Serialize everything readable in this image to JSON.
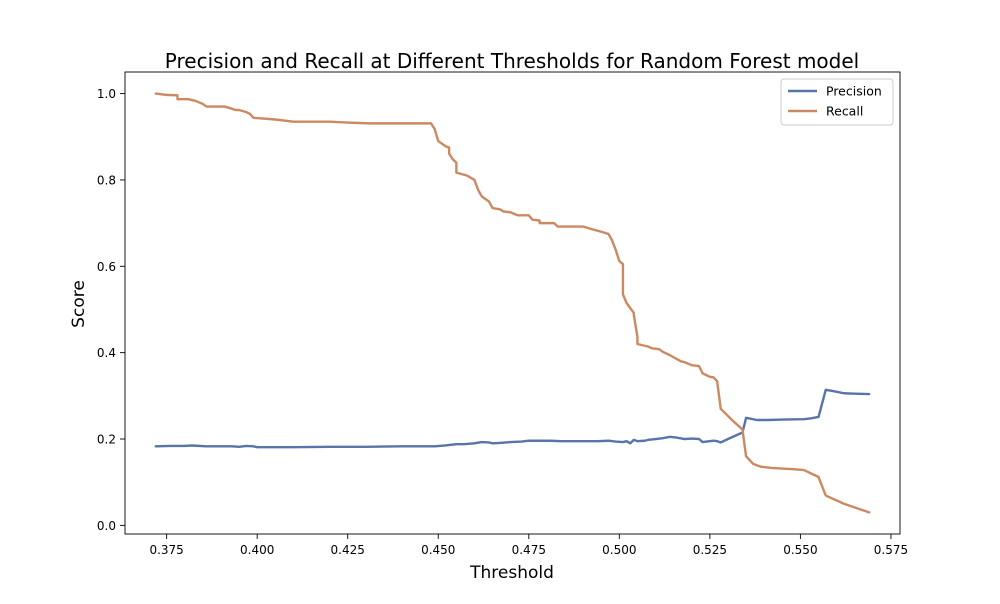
{
  "chart_data": {
    "type": "line",
    "title": "Precision and Recall at Different Thresholds for Random Forest  model",
    "xlabel": "Threshold",
    "ylabel": "Score",
    "xlim": [
      0.3635,
      0.5775
    ],
    "ylim": [
      -0.02,
      1.05
    ],
    "xticks": [
      0.375,
      0.4,
      0.425,
      0.45,
      0.475,
      0.5,
      0.525,
      0.55,
      0.575
    ],
    "xtick_labels": [
      "0.375",
      "0.400",
      "0.425",
      "0.450",
      "0.475",
      "0.500",
      "0.525",
      "0.550",
      "0.575"
    ],
    "yticks": [
      0.0,
      0.2,
      0.4,
      0.6,
      0.8,
      1.0
    ],
    "ytick_labels": [
      "0.0",
      "0.2",
      "0.4",
      "0.6",
      "0.8",
      "1.0"
    ],
    "grid": false,
    "legend_position": "top-right",
    "series": [
      {
        "name": "Precision",
        "color": "#5874a8",
        "points": [
          [
            0.372,
            0.183
          ],
          [
            0.376,
            0.184
          ],
          [
            0.38,
            0.184
          ],
          [
            0.382,
            0.185
          ],
          [
            0.386,
            0.183
          ],
          [
            0.391,
            0.183
          ],
          [
            0.393,
            0.183
          ],
          [
            0.395,
            0.182
          ],
          [
            0.397,
            0.184
          ],
          [
            0.399,
            0.183
          ],
          [
            0.4,
            0.181
          ],
          [
            0.41,
            0.181
          ],
          [
            0.42,
            0.182
          ],
          [
            0.43,
            0.182
          ],
          [
            0.44,
            0.183
          ],
          [
            0.449,
            0.183
          ],
          [
            0.452,
            0.185
          ],
          [
            0.455,
            0.188
          ],
          [
            0.457,
            0.188
          ],
          [
            0.46,
            0.19
          ],
          [
            0.462,
            0.193
          ],
          [
            0.464,
            0.192
          ],
          [
            0.465,
            0.19
          ],
          [
            0.467,
            0.191
          ],
          [
            0.47,
            0.193
          ],
          [
            0.473,
            0.194
          ],
          [
            0.475,
            0.196
          ],
          [
            0.478,
            0.196
          ],
          [
            0.481,
            0.196
          ],
          [
            0.484,
            0.195
          ],
          [
            0.49,
            0.195
          ],
          [
            0.494,
            0.195
          ],
          [
            0.497,
            0.196
          ],
          [
            0.499,
            0.194
          ],
          [
            0.501,
            0.193
          ],
          [
            0.502,
            0.195
          ],
          [
            0.503,
            0.19
          ],
          [
            0.504,
            0.198
          ],
          [
            0.505,
            0.195
          ],
          [
            0.507,
            0.196
          ],
          [
            0.508,
            0.198
          ],
          [
            0.51,
            0.2
          ],
          [
            0.512,
            0.202
          ],
          [
            0.514,
            0.205
          ],
          [
            0.516,
            0.203
          ],
          [
            0.518,
            0.2
          ],
          [
            0.52,
            0.201
          ],
          [
            0.522,
            0.2
          ],
          [
            0.523,
            0.193
          ],
          [
            0.526,
            0.196
          ],
          [
            0.527,
            0.195
          ],
          [
            0.528,
            0.192
          ],
          [
            0.53,
            0.2
          ],
          [
            0.534,
            0.215
          ],
          [
            0.535,
            0.249
          ],
          [
            0.538,
            0.244
          ],
          [
            0.541,
            0.244
          ],
          [
            0.545,
            0.245
          ],
          [
            0.551,
            0.246
          ],
          [
            0.553,
            0.248
          ],
          [
            0.555,
            0.251
          ],
          [
            0.557,
            0.314
          ],
          [
            0.559,
            0.311
          ],
          [
            0.562,
            0.306
          ],
          [
            0.565,
            0.305
          ],
          [
            0.569,
            0.304
          ]
        ]
      },
      {
        "name": "Recall",
        "color": "#cb8962",
        "points": [
          [
            0.372,
            1.0
          ],
          [
            0.375,
            0.997
          ],
          [
            0.378,
            0.996
          ],
          [
            0.378,
            0.987
          ],
          [
            0.381,
            0.987
          ],
          [
            0.383,
            0.983
          ],
          [
            0.385,
            0.976
          ],
          [
            0.386,
            0.97
          ],
          [
            0.391,
            0.97
          ],
          [
            0.393,
            0.965
          ],
          [
            0.394,
            0.962
          ],
          [
            0.395,
            0.962
          ],
          [
            0.397,
            0.957
          ],
          [
            0.398,
            0.953
          ],
          [
            0.399,
            0.944
          ],
          [
            0.405,
            0.94
          ],
          [
            0.41,
            0.935
          ],
          [
            0.42,
            0.935
          ],
          [
            0.425,
            0.933
          ],
          [
            0.431,
            0.931
          ],
          [
            0.44,
            0.931
          ],
          [
            0.448,
            0.931
          ],
          [
            0.449,
            0.918
          ],
          [
            0.45,
            0.89
          ],
          [
            0.452,
            0.878
          ],
          [
            0.453,
            0.875
          ],
          [
            0.453,
            0.861
          ],
          [
            0.454,
            0.848
          ],
          [
            0.455,
            0.84
          ],
          [
            0.455,
            0.817
          ],
          [
            0.458,
            0.81
          ],
          [
            0.46,
            0.8
          ],
          [
            0.461,
            0.777
          ],
          [
            0.462,
            0.762
          ],
          [
            0.464,
            0.75
          ],
          [
            0.465,
            0.735
          ],
          [
            0.467,
            0.732
          ],
          [
            0.468,
            0.727
          ],
          [
            0.47,
            0.725
          ],
          [
            0.472,
            0.718
          ],
          [
            0.475,
            0.718
          ],
          [
            0.476,
            0.708
          ],
          [
            0.478,
            0.706
          ],
          [
            0.478,
            0.7
          ],
          [
            0.48,
            0.7
          ],
          [
            0.482,
            0.7
          ],
          [
            0.483,
            0.692
          ],
          [
            0.485,
            0.692
          ],
          [
            0.49,
            0.692
          ],
          [
            0.492,
            0.687
          ],
          [
            0.495,
            0.68
          ],
          [
            0.497,
            0.675
          ],
          [
            0.498,
            0.66
          ],
          [
            0.499,
            0.638
          ],
          [
            0.5,
            0.612
          ],
          [
            0.501,
            0.605
          ],
          [
            0.501,
            0.535
          ],
          [
            0.502,
            0.515
          ],
          [
            0.504,
            0.492
          ],
          [
            0.504,
            0.487
          ],
          [
            0.505,
            0.437
          ],
          [
            0.505,
            0.42
          ],
          [
            0.508,
            0.414
          ],
          [
            0.509,
            0.41
          ],
          [
            0.511,
            0.408
          ],
          [
            0.512,
            0.402
          ],
          [
            0.514,
            0.394
          ],
          [
            0.517,
            0.38
          ],
          [
            0.518,
            0.378
          ],
          [
            0.52,
            0.371
          ],
          [
            0.522,
            0.369
          ],
          [
            0.523,
            0.352
          ],
          [
            0.525,
            0.344
          ],
          [
            0.526,
            0.343
          ],
          [
            0.527,
            0.334
          ],
          [
            0.528,
            0.27
          ],
          [
            0.531,
            0.245
          ],
          [
            0.534,
            0.222
          ],
          [
            0.535,
            0.16
          ],
          [
            0.537,
            0.142
          ],
          [
            0.539,
            0.136
          ],
          [
            0.542,
            0.133
          ],
          [
            0.548,
            0.13
          ],
          [
            0.551,
            0.128
          ],
          [
            0.555,
            0.112
          ],
          [
            0.557,
            0.069
          ],
          [
            0.562,
            0.05
          ],
          [
            0.569,
            0.03
          ]
        ]
      }
    ]
  }
}
